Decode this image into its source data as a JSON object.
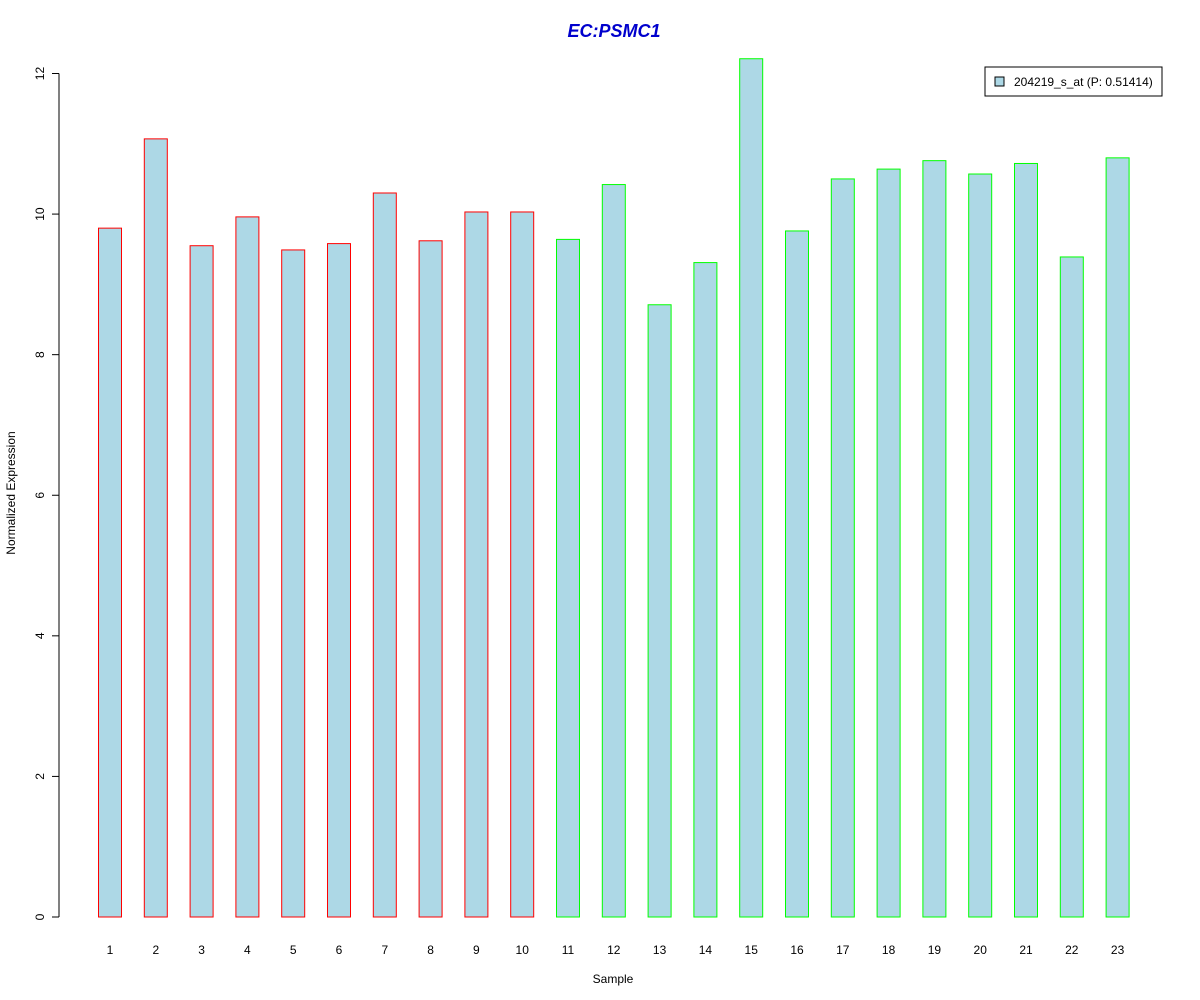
{
  "chart_data": {
    "type": "bar",
    "title": "EC:PSMC1",
    "xlabel": "Sample",
    "ylabel": "Normalized Expression",
    "categories": [
      "1",
      "2",
      "3",
      "4",
      "5",
      "6",
      "7",
      "8",
      "9",
      "10",
      "11",
      "12",
      "13",
      "14",
      "15",
      "16",
      "17",
      "18",
      "19",
      "20",
      "21",
      "22",
      "23"
    ],
    "series": [
      {
        "name": "204219_s_at (P: 0.51414)",
        "values": [
          9.8,
          11.07,
          9.55,
          9.96,
          9.49,
          9.58,
          10.3,
          9.62,
          10.03,
          10.03,
          9.64,
          10.42,
          8.71,
          9.31,
          12.21,
          9.76,
          10.5,
          10.64,
          10.76,
          10.57,
          10.72,
          9.39,
          10.8
        ]
      }
    ],
    "groups": [
      {
        "samples": [
          1,
          2,
          3,
          4,
          5,
          6,
          7,
          8,
          9,
          10
        ],
        "border_color": "#ff0000"
      },
      {
        "samples": [
          11,
          12,
          13,
          14,
          15,
          16,
          17,
          18,
          19,
          20,
          21,
          22,
          23
        ],
        "border_color": "#00ff00"
      }
    ],
    "ylim": [
      0,
      12
    ],
    "yticks": [
      0,
      2,
      4,
      6,
      8,
      10,
      12
    ],
    "bar_fill": "#add8e6",
    "title_color": "#0000cd",
    "legend_position": "top-right",
    "grid": false
  }
}
